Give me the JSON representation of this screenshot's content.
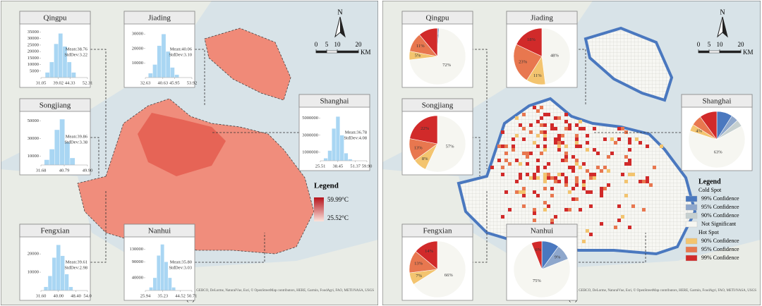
{
  "panels": [
    {
      "label": "(a)",
      "north": "N",
      "scale": {
        "ticks": [
          0,
          5,
          10,
          20
        ],
        "unit": "KM"
      },
      "legend": {
        "title": "Legend",
        "max": "59.99°C",
        "min": "25.52°C"
      },
      "attribution": "Esri, GEBCO, DeLorme, NaturalVue, Esri, © OpenStreetMap contributors, HERE, Garmin, FoodAgri, FAO, METI/NASA, USGS",
      "insets": [
        {
          "name": "Qingpu",
          "mean": "Mean:38.76",
          "stddev": "StdDev:3.22",
          "bins": [
            33,
            35,
            37,
            39,
            41,
            43,
            45,
            47
          ],
          "counts": [
            4000,
            12000,
            26000,
            34000,
            24000,
            12000,
            4000
          ],
          "xlim": [
            31.05,
            52.31
          ],
          "xticks": [
            31.05,
            39.02,
            44.33,
            52.31
          ],
          "ylim": [
            0,
            38000
          ],
          "yticks": [
            5000,
            10000,
            15000,
            20000,
            25000,
            30000,
            35000
          ]
        },
        {
          "name": "Jiading",
          "mean": "Mean:40.06",
          "stddev": "StdDev:3.10",
          "bins": [
            34,
            36,
            38,
            40,
            42,
            44,
            46,
            48
          ],
          "counts": [
            3000,
            9000,
            22000,
            30000,
            18000,
            7000,
            2000
          ],
          "xlim": [
            32.63,
            53.92
          ],
          "xticks": [
            32.63,
            40.63,
            45.95,
            53.92
          ],
          "ylim": [
            0,
            34000
          ],
          "yticks": [
            10000,
            20000,
            30000
          ]
        },
        {
          "name": "Songjiang",
          "mean": "Mean:39.86",
          "stddev": "StdDev:3.38",
          "bins": [
            33,
            35,
            37,
            39,
            41,
            43,
            45
          ],
          "counts": [
            6000,
            18000,
            40000,
            52000,
            26000,
            8000
          ],
          "xlim": [
            31.68,
            49.9
          ],
          "xticks": [
            31.68,
            40.79,
            {
              "value": 49.9,
              "label": "49.90"
            }
          ],
          "ylim": [
            0,
            56000
          ],
          "yticks": [
            10000,
            30000,
            50000
          ]
        },
        {
          "name": "Shanghai",
          "mean": "Mean:36.78",
          "stddev": "StdDev:4.08",
          "bins": [
            28,
            31,
            34,
            37,
            40,
            43,
            46,
            49
          ],
          "counts": [
            300000,
            1200000,
            3800000,
            5200000,
            3000000,
            900000,
            200000
          ],
          "xlim": [
            25.51,
            59.9
          ],
          "xticks": [
            25.51,
            38.45,
            51.37,
            {
              "value": 59.9,
              "label": "59.90"
            }
          ],
          "ylim": [
            0,
            5800000
          ],
          "yticks": [
            1000000,
            3000000,
            5000000
          ]
        },
        {
          "name": "Fengxian",
          "mean": "Mean:39.61",
          "stddev": "StdDev:2.98",
          "bins": [
            33,
            35,
            37,
            39,
            41,
            43,
            45,
            47
          ],
          "counts": [
            2000,
            8000,
            18000,
            25000,
            19000,
            9000,
            2000
          ],
          "xlim": [
            31.6,
            54
          ],
          "xticks": [
            {
              "value": 31.6,
              "label": "31.60"
            },
            {
              "value": 40,
              "label": "40.00"
            },
            {
              "value": 48.4,
              "label": "48.40"
            },
            {
              "value": 54,
              "label": "54.0"
            }
          ],
          "ylim": [
            0,
            27000
          ],
          "yticks": [
            10000,
            20000
          ]
        },
        {
          "name": "Nanhui",
          "mean": "Mean:35.80",
          "stddev": "StdDev:3.03",
          "bins": [
            28,
            30,
            32,
            34,
            36,
            38,
            40,
            42
          ],
          "counts": [
            10000,
            40000,
            110000,
            145000,
            90000,
            40000,
            10000
          ],
          "xlim": [
            25.94,
            50.71
          ],
          "xticks": [
            25.94,
            35.23,
            44.52,
            50.71
          ],
          "ylim": [
            0,
            155000
          ],
          "yticks": [
            40000,
            90000,
            130000
          ]
        }
      ]
    },
    {
      "label": "(b)",
      "north": "N",
      "scale": {
        "ticks": [
          0,
          5,
          10,
          20
        ],
        "unit": "KM"
      },
      "legend": {
        "title": "Legend",
        "cold_title": "Cold Spot",
        "hot_title": "Hot Spot",
        "classes": [
          {
            "label": "99% Confidence",
            "color": "#4a78bf"
          },
          {
            "label": "95% Confidence",
            "color": "#8ea7cc"
          },
          {
            "label": "90% Confidence",
            "color": "#c6d0d0"
          },
          {
            "label": "Not Significant",
            "color": "#f6f6f1"
          },
          {
            "label": "90% Confidence",
            "color": "#f3c46f"
          },
          {
            "label": "95% Confidence",
            "color": "#e8774f"
          },
          {
            "label": "99% Confidence",
            "color": "#d12a2a"
          }
        ]
      },
      "attribution": "Esri, GEBCO, DeLorme, NaturalVue, Esri, © OpenStreetMap contributors, HERE, Garmin, FoodAgri, FAO, METI/NASA, USGS",
      "insets": [
        {
          "name": "Qingpu",
          "values": [
            0,
            1,
            0,
            72,
            5,
            11,
            11
          ],
          "value_labels": [
            null,
            "1%",
            null,
            "72%",
            "5%",
            "11%",
            null
          ]
        },
        {
          "name": "Jiading",
          "values": [
            0,
            0,
            0,
            48,
            11,
            23,
            18
          ],
          "value_labels": [
            null,
            null,
            null,
            "48%",
            "11%",
            "23%",
            "18%"
          ]
        },
        {
          "name": "Songjiang",
          "values": [
            0,
            0,
            0,
            57,
            8,
            13,
            22
          ],
          "value_labels": [
            null,
            null,
            null,
            "57%",
            "8%",
            "13%",
            "22%"
          ]
        },
        {
          "name": "Shanghai",
          "values": [
            9,
            4,
            4,
            63,
            4,
            6,
            10
          ],
          "value_labels": [
            null,
            null,
            null,
            "63%",
            "4%",
            null,
            null
          ]
        },
        {
          "name": "Fengxian",
          "values": [
            0,
            0,
            0,
            66,
            7,
            13,
            14
          ],
          "value_labels": [
            null,
            null,
            null,
            "66%",
            "7%",
            "13%",
            "14%"
          ]
        },
        {
          "name": "Nanhui",
          "values": [
            10,
            9,
            0,
            75,
            0,
            0,
            6
          ],
          "value_labels": [
            null,
            "9%",
            null,
            "75%",
            null,
            null,
            "6%"
          ]
        }
      ]
    }
  ]
}
